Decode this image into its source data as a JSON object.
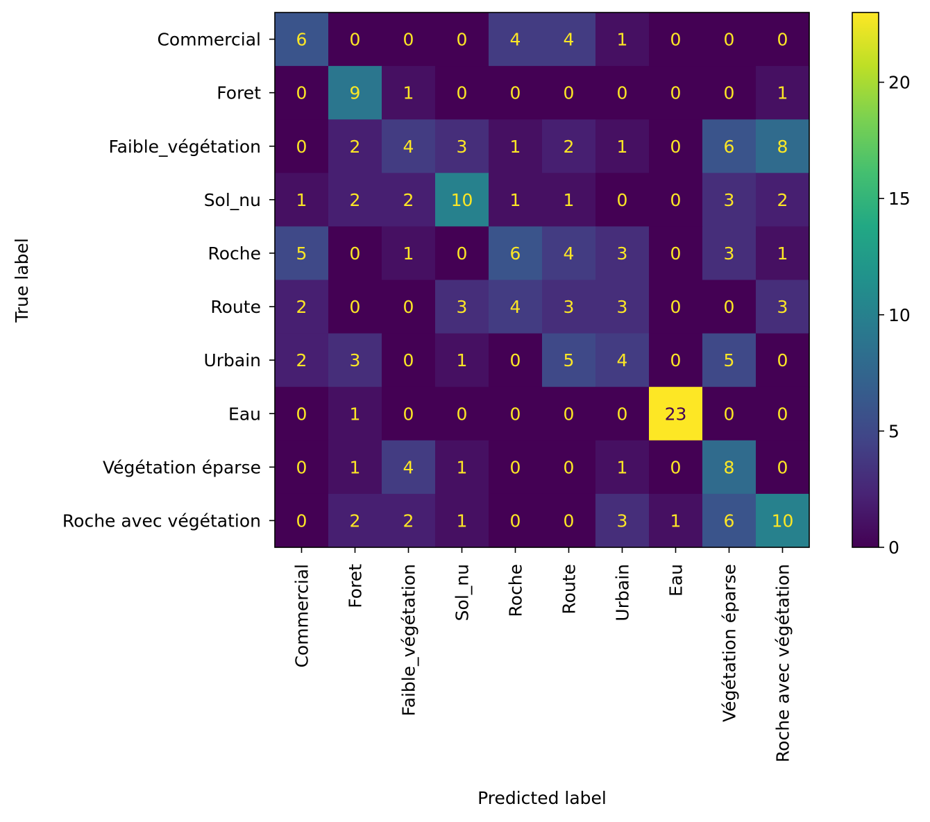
{
  "chart_data": {
    "type": "heatmap",
    "title": "",
    "xlabel": "Predicted label",
    "ylabel": "True label",
    "categories": [
      "Commercial",
      "Foret",
      "Faible_végétation",
      "Sol_nu",
      "Roche",
      "Route",
      "Urbain",
      "Eau",
      "Végétation éparse",
      "Roche avec végétation"
    ],
    "matrix": [
      [
        6,
        0,
        0,
        0,
        4,
        4,
        1,
        0,
        0,
        0
      ],
      [
        0,
        9,
        1,
        0,
        0,
        0,
        0,
        0,
        0,
        1
      ],
      [
        0,
        2,
        4,
        3,
        1,
        2,
        1,
        0,
        6,
        8
      ],
      [
        1,
        2,
        2,
        10,
        1,
        1,
        0,
        0,
        3,
        2
      ],
      [
        5,
        0,
        1,
        0,
        6,
        4,
        3,
        0,
        3,
        1
      ],
      [
        2,
        0,
        0,
        3,
        4,
        3,
        3,
        0,
        0,
        3
      ],
      [
        2,
        3,
        0,
        1,
        0,
        5,
        4,
        0,
        5,
        0
      ],
      [
        0,
        1,
        0,
        0,
        0,
        0,
        0,
        23,
        0,
        0
      ],
      [
        0,
        1,
        4,
        1,
        0,
        0,
        1,
        0,
        8,
        0
      ],
      [
        0,
        2,
        2,
        1,
        0,
        0,
        3,
        1,
        6,
        10
      ]
    ],
    "value_range": [
      0,
      23
    ],
    "colormap": "viridis",
    "colorbar_ticks": [
      0,
      5,
      10,
      15,
      20
    ],
    "grid": false,
    "legend": "colorbar-right"
  }
}
